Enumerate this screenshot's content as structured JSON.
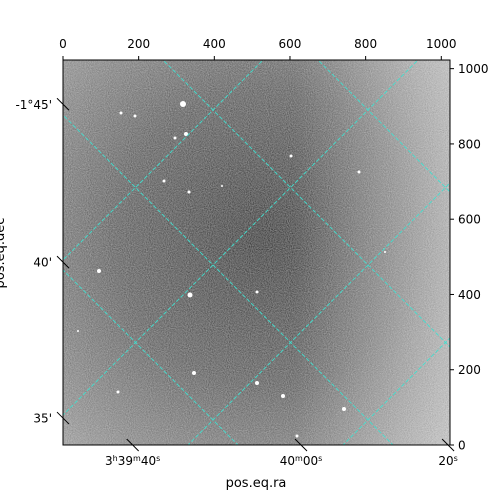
{
  "chart_data": {
    "type": "image",
    "title": "",
    "xlabel": "pos.eq.ra",
    "ylabel": "pos.eq.dec",
    "pixel_axes": {
      "x_ticks": [
        0,
        200,
        400,
        600,
        800,
        1000
      ],
      "y_ticks": [
        0,
        200,
        400,
        600,
        800,
        1000
      ],
      "xlim": [
        0,
        1023
      ],
      "ylim": [
        0,
        1023
      ]
    },
    "world_axes": {
      "ra_ticks": [
        {
          "pos": 0.18,
          "h": "3",
          "m": "39",
          "s": "40",
          "show_hm": true
        },
        {
          "pos": 0.615,
          "h": "",
          "m": "40",
          "s": "00",
          "show_hm": false
        },
        {
          "pos": 0.995,
          "h": "",
          "m": "",
          "s": "20",
          "show_hm": false
        }
      ],
      "dec_ticks": [
        {
          "pos": 0.885,
          "label": "-1°45'"
        },
        {
          "pos": 0.475,
          "label": "40'"
        },
        {
          "pos": 0.07,
          "label": "35'"
        }
      ]
    },
    "grid": true,
    "grid_color": "#40e0d0",
    "colormap": "gray"
  }
}
